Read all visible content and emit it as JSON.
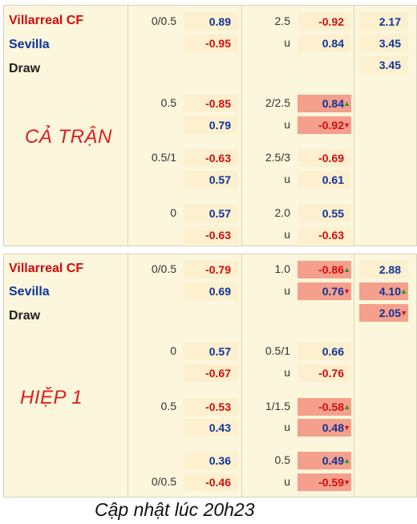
{
  "full_match": {
    "label": "CẢ TRẬN",
    "teams": {
      "home": "Villarreal CF",
      "away": "Sevilla",
      "draw": "Draw"
    },
    "rows": [
      {
        "hcap": "0/0.5",
        "h1": "0.89",
        "ou_line": "2.5",
        "o1": "-0.92",
        "x12": "2.17"
      },
      {
        "h2": "-0.95",
        "u": "u",
        "o2": "0.84",
        "x12": "3.45"
      },
      {
        "x12": "3.45"
      },
      {
        "hcap": "0.5",
        "h1": "-0.85",
        "ou_line": "2/2.5",
        "o1": "0.84"
      },
      {
        "h2": "0.79",
        "u": "u",
        "o2": "-0.92"
      },
      {
        "hcap": "0.5/1",
        "h1": "-0.63",
        "ou_line": "2.5/3",
        "o1": "-0.69"
      },
      {
        "h2": "0.57",
        "u": "u",
        "o2": "0.61"
      },
      {
        "hcap": "0",
        "h1": "0.57",
        "ou_line": "2.0",
        "o1": "0.55"
      },
      {
        "h2": "-0.63",
        "u": "u",
        "o2": "-0.63"
      }
    ]
  },
  "first_half": {
    "label": "HIỆP 1",
    "teams": {
      "home": "Villarreal CF",
      "away": "Sevilla",
      "draw": "Draw"
    },
    "rows": [
      {
        "hcap": "0/0.5",
        "h1": "-0.79",
        "ou_line": "1.0",
        "o1": "-0.86",
        "x12": "2.88"
      },
      {
        "h2": "0.69",
        "u": "u",
        "o2": "0.76",
        "x12": "4.10"
      },
      {
        "x12": "2.05"
      },
      {
        "hcap": "0",
        "h1": "0.57",
        "ou_line": "0.5/1",
        "o1": "0.66"
      },
      {
        "h2": "-0.67",
        "u": "u",
        "o2": "-0.76"
      },
      {
        "hcap": "0.5",
        "h1": "-0.53",
        "ou_line": "1/1.5",
        "o1": "-0.58"
      },
      {
        "h2": "0.43",
        "u": "u",
        "o2": "0.48"
      },
      {
        "h1": "0.36",
        "ou_line": "0.5",
        "o1": "0.49"
      },
      {
        "hcap": "0/0.5",
        "h2": "-0.46",
        "u": "u",
        "o2": "-0.59"
      }
    ]
  },
  "footer": "Cập nhật lúc 20h23",
  "colors": {
    "negative": "#d60d0d",
    "positive": "#10349a",
    "highlight": "#f4a08c",
    "cell": "#fdf0cf",
    "panel": "#fbf6dc"
  },
  "icons": {
    "up": "triangle-up-icon",
    "down": "triangle-down-icon"
  }
}
